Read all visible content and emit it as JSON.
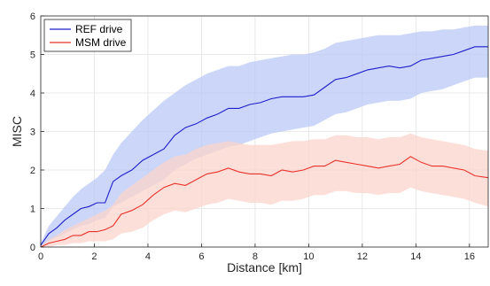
{
  "chart_data": {
    "type": "line",
    "xlabel": "Distance [km]",
    "ylabel": "MISC",
    "xlim": [
      0,
      16.7
    ],
    "ylim": [
      0,
      6
    ],
    "xticks": [
      0,
      2,
      4,
      6,
      8,
      10,
      12,
      14,
      16
    ],
    "yticks": [
      0,
      1,
      2,
      3,
      4,
      5,
      6
    ],
    "grid": true,
    "legend_position": "top-left",
    "series": [
      {
        "name": "REF drive",
        "color": "#1f1fcc",
        "band_color": "#b9c8f6",
        "x": [
          0,
          0.3,
          0.6,
          0.9,
          1.2,
          1.5,
          1.8,
          2.1,
          2.4,
          2.7,
          3.0,
          3.4,
          3.8,
          4.2,
          4.6,
          5.0,
          5.4,
          5.8,
          6.2,
          6.6,
          7.0,
          7.4,
          7.8,
          8.2,
          8.6,
          9.0,
          9.4,
          9.8,
          10.2,
          10.6,
          11.0,
          11.4,
          11.8,
          12.2,
          12.6,
          13.0,
          13.4,
          13.8,
          14.2,
          14.6,
          15.0,
          15.4,
          15.8,
          16.2,
          16.7
        ],
        "y": [
          0.05,
          0.35,
          0.5,
          0.7,
          0.85,
          1.0,
          1.05,
          1.15,
          1.15,
          1.7,
          1.85,
          2.0,
          2.25,
          2.4,
          2.55,
          2.9,
          3.1,
          3.2,
          3.35,
          3.45,
          3.6,
          3.6,
          3.7,
          3.75,
          3.85,
          3.9,
          3.9,
          3.9,
          3.95,
          4.15,
          4.35,
          4.4,
          4.5,
          4.6,
          4.65,
          4.7,
          4.65,
          4.7,
          4.85,
          4.9,
          4.95,
          5.0,
          5.1,
          5.2,
          5.2
        ],
        "upper": [
          0.1,
          0.55,
          0.8,
          1.05,
          1.3,
          1.5,
          1.65,
          1.8,
          2.0,
          2.4,
          2.7,
          3.0,
          3.3,
          3.55,
          3.8,
          4.0,
          4.2,
          4.35,
          4.5,
          4.6,
          4.7,
          4.7,
          4.8,
          4.85,
          4.9,
          4.95,
          5.0,
          5.0,
          5.05,
          5.15,
          5.3,
          5.35,
          5.4,
          5.45,
          5.5,
          5.5,
          5.5,
          5.55,
          5.6,
          5.6,
          5.65,
          5.65,
          5.7,
          5.75,
          5.75
        ],
        "lower": [
          0.0,
          0.15,
          0.25,
          0.35,
          0.45,
          0.55,
          0.6,
          0.7,
          0.75,
          1.05,
          1.15,
          1.3,
          1.45,
          1.6,
          1.75,
          2.0,
          2.15,
          2.3,
          2.4,
          2.5,
          2.6,
          2.65,
          2.75,
          2.85,
          2.95,
          3.0,
          3.05,
          3.1,
          3.15,
          3.3,
          3.45,
          3.5,
          3.6,
          3.7,
          3.75,
          3.8,
          3.8,
          3.85,
          4.0,
          4.05,
          4.1,
          4.2,
          4.3,
          4.4,
          4.4
        ]
      },
      {
        "name": "MSM drive",
        "color": "#e8322a",
        "band_color": "#fcd4cc",
        "x": [
          0,
          0.3,
          0.6,
          0.9,
          1.2,
          1.5,
          1.8,
          2.1,
          2.4,
          2.7,
          3.0,
          3.4,
          3.8,
          4.2,
          4.6,
          5.0,
          5.4,
          5.8,
          6.2,
          6.6,
          7.0,
          7.4,
          7.8,
          8.2,
          8.6,
          9.0,
          9.4,
          9.8,
          10.2,
          10.6,
          11.0,
          11.4,
          11.8,
          12.2,
          12.6,
          13.0,
          13.4,
          13.8,
          14.2,
          14.6,
          15.0,
          15.4,
          15.8,
          16.2,
          16.7
        ],
        "y": [
          0.0,
          0.1,
          0.15,
          0.2,
          0.3,
          0.3,
          0.4,
          0.4,
          0.45,
          0.55,
          0.85,
          0.95,
          1.1,
          1.35,
          1.55,
          1.65,
          1.6,
          1.75,
          1.9,
          1.95,
          2.05,
          1.95,
          1.9,
          1.9,
          1.85,
          2.0,
          1.95,
          2.0,
          2.1,
          2.1,
          2.25,
          2.2,
          2.15,
          2.1,
          2.05,
          2.1,
          2.15,
          2.35,
          2.2,
          2.1,
          2.1,
          2.05,
          2.0,
          1.85,
          1.8
        ],
        "upper": [
          0.0,
          0.2,
          0.3,
          0.45,
          0.55,
          0.65,
          0.75,
          0.85,
          0.95,
          1.1,
          1.4,
          1.6,
          1.8,
          2.0,
          2.2,
          2.35,
          2.4,
          2.55,
          2.65,
          2.7,
          2.75,
          2.7,
          2.65,
          2.65,
          2.65,
          2.7,
          2.75,
          2.75,
          2.8,
          2.8,
          2.9,
          2.9,
          2.85,
          2.85,
          2.8,
          2.85,
          2.85,
          2.95,
          2.85,
          2.8,
          2.75,
          2.7,
          2.65,
          2.55,
          2.5
        ],
        "lower": [
          0.0,
          0.0,
          0.05,
          0.05,
          0.1,
          0.1,
          0.15,
          0.15,
          0.15,
          0.2,
          0.35,
          0.4,
          0.5,
          0.7,
          0.85,
          0.95,
          0.9,
          1.0,
          1.1,
          1.15,
          1.25,
          1.2,
          1.15,
          1.15,
          1.1,
          1.2,
          1.2,
          1.25,
          1.35,
          1.35,
          1.45,
          1.45,
          1.4,
          1.4,
          1.35,
          1.4,
          1.4,
          1.55,
          1.45,
          1.4,
          1.35,
          1.3,
          1.25,
          1.15,
          1.05
        ]
      }
    ]
  }
}
